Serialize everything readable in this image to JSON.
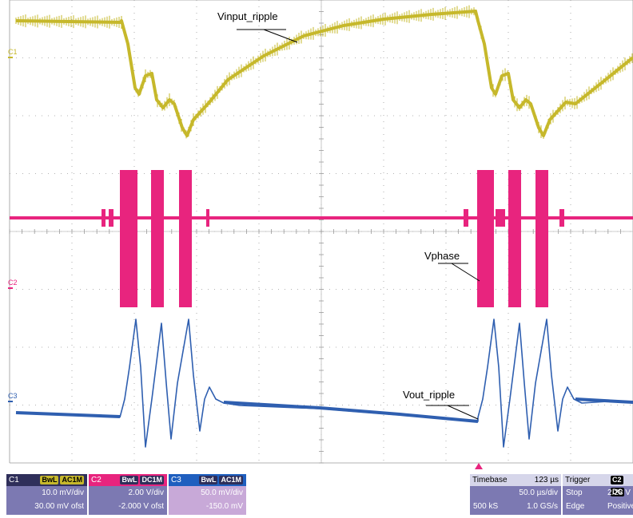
{
  "labels": {
    "vinput": "Vinput_ripple",
    "vphase": "Vphase",
    "vout": "Vout_ripple"
  },
  "channels": {
    "c1_tag": "C1",
    "c2_tag": "C2",
    "c3_tag": "C3"
  },
  "c1": {
    "name": "C1",
    "bwl": "BwL",
    "coupling": "AC1M",
    "scale": "10.0 mV/div",
    "offset": "30.00 mV ofst",
    "color": "#c6b82b"
  },
  "c2": {
    "name": "C2",
    "bwl": "BwL",
    "coupling": "DC1M",
    "scale": "2.00 V/div",
    "offset": "-2.000 V ofst",
    "color": "#e8247e"
  },
  "c3": {
    "name": "C3",
    "bwl": "BwL",
    "coupling": "AC1M",
    "scale": "50.0 mV/div",
    "offset": "-150.0 mV",
    "color": "#2f5fb0"
  },
  "timebase": {
    "label": "Timebase",
    "delay": "123 µs",
    "per_div": "50.0 µs/div",
    "samples": "500 kS",
    "rate": "1.0 GS/s"
  },
  "trigger": {
    "label": "Trigger",
    "source": "C2",
    "coupling": "DC",
    "mode": "Stop",
    "level": "2.28 V",
    "type": "Edge",
    "slope": "Positive"
  }
}
